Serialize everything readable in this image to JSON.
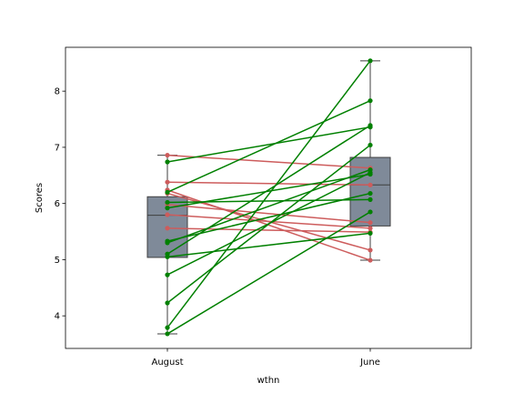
{
  "chart_data": {
    "type": "box",
    "title": "",
    "xlabel": "wthn",
    "ylabel": "Scores",
    "categories": [
      "August",
      "June"
    ],
    "ylim": [
      3.42,
      8.78
    ],
    "yticks": [
      4,
      5,
      6,
      7,
      8
    ],
    "grid": false,
    "legend": "none",
    "box_color": "#7f8a99",
    "box_edge_color": "#3f3f3f",
    "boxes": [
      {
        "category": "August",
        "whisker_low": 3.68,
        "q1": 5.04,
        "median": 5.79,
        "q3": 6.12,
        "whisker_high": 6.86
      },
      {
        "category": "June",
        "whisker_low": 4.99,
        "q1": 5.6,
        "median": 6.33,
        "q3": 6.82,
        "whisker_high": 8.54
      }
    ],
    "increase_color": "#008000",
    "decrease_color": "#cd5c5c",
    "pairs": [
      {
        "august": 6.86,
        "june": 6.63
      },
      {
        "august": 6.38,
        "june": 6.33
      },
      {
        "august": 6.24,
        "june": 4.99
      },
      {
        "august": 6.18,
        "june": 5.17
      },
      {
        "august": 5.98,
        "june": 5.66
      },
      {
        "august": 5.8,
        "june": 5.56
      },
      {
        "august": 5.56,
        "june": 5.49
      },
      {
        "august": 6.74,
        "june": 7.36
      },
      {
        "august": 6.2,
        "june": 7.83
      },
      {
        "august": 6.02,
        "june": 6.07
      },
      {
        "august": 5.92,
        "june": 6.52
      },
      {
        "august": 5.33,
        "june": 6.18
      },
      {
        "august": 5.3,
        "june": 6.6
      },
      {
        "august": 5.05,
        "june": 5.47
      },
      {
        "august": 4.73,
        "june": 6.55
      },
      {
        "august": 4.23,
        "june": 7.04
      },
      {
        "august": 3.79,
        "june": 8.54
      },
      {
        "august": 3.68,
        "june": 5.85
      },
      {
        "august": 5.1,
        "june": 7.39
      }
    ]
  }
}
